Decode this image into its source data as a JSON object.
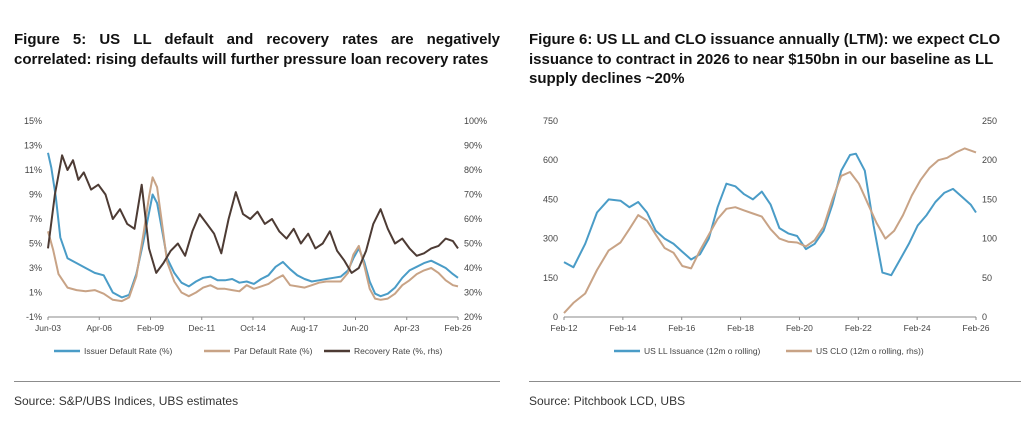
{
  "figures": [
    {
      "title": "Figure 5: US LL default and recovery rates are negatively correlated: rising defaults will further pressure loan recovery rates",
      "source": "Source: S&P/UBS Indices, UBS estimates"
    },
    {
      "title": "Figure 6: US LL and CLO issuance annually (LTM): we expect CLO issuance to contract in 2026 to near $150bn in our baseline as LL supply declines ~20%",
      "source": "Source: Pitchbook LCD, UBS"
    }
  ],
  "chart_data": [
    {
      "type": "line",
      "title": "",
      "xlabel": "",
      "ylabel": "",
      "x_ticks": [
        "Jun-03",
        "Apr-06",
        "Feb-09",
        "Dec-11",
        "Oct-14",
        "Aug-17",
        "Jun-20",
        "Apr-23",
        "Feb-26"
      ],
      "x_range": [
        2003.42,
        2026.08
      ],
      "y_ticks": [
        "-1%",
        "1%",
        "3%",
        "5%",
        "7%",
        "9%",
        "11%",
        "13%",
        "15%"
      ],
      "ylim": [
        -1,
        15
      ],
      "y2_ticks": [
        "20%",
        "30%",
        "40%",
        "50%",
        "60%",
        "70%",
        "80%",
        "90%",
        "100%"
      ],
      "y2lim": [
        20,
        100
      ],
      "grid": false,
      "legend_position": "bottom",
      "colors": {
        "issuer": "#4a9cc7",
        "par": "#c8a386",
        "recovery": "#4d3b34"
      },
      "series": [
        {
          "name": "Issuer Default Rate (%)",
          "axis": "left",
          "x": [
            2003.42,
            2003.6,
            2003.85,
            2004.1,
            2004.5,
            2005.0,
            2005.5,
            2006.0,
            2006.5,
            2007.0,
            2007.5,
            2007.9,
            2008.3,
            2008.7,
            2009.0,
            2009.2,
            2009.45,
            2009.7,
            2010.0,
            2010.4,
            2010.8,
            2011.2,
            2011.6,
            2012.0,
            2012.4,
            2012.8,
            2013.2,
            2013.6,
            2014.0,
            2014.4,
            2014.8,
            2015.2,
            2015.6,
            2016.0,
            2016.4,
            2016.8,
            2017.2,
            2017.6,
            2018.0,
            2018.4,
            2018.8,
            2019.2,
            2019.6,
            2020.0,
            2020.3,
            2020.6,
            2020.9,
            2021.2,
            2021.5,
            2021.8,
            2022.2,
            2022.6,
            2023.0,
            2023.4,
            2023.8,
            2024.2,
            2024.6,
            2025.0,
            2025.4,
            2025.8,
            2026.08
          ],
          "values": [
            12.4,
            11.2,
            8.8,
            5.5,
            3.8,
            3.4,
            3.0,
            2.6,
            2.4,
            1.0,
            0.6,
            0.8,
            2.5,
            5.2,
            7.5,
            9.0,
            8.3,
            6.3,
            3.8,
            2.6,
            1.8,
            1.5,
            1.9,
            2.2,
            2.3,
            2.0,
            2.0,
            2.1,
            1.8,
            1.9,
            1.7,
            2.1,
            2.4,
            3.1,
            3.5,
            2.9,
            2.4,
            2.1,
            1.9,
            2.0,
            2.1,
            2.2,
            2.3,
            2.8,
            3.8,
            4.6,
            3.5,
            1.9,
            0.9,
            0.7,
            0.9,
            1.4,
            2.2,
            2.8,
            3.1,
            3.4,
            3.6,
            3.3,
            3.0,
            2.5,
            2.2
          ]
        },
        {
          "name": "Par Default Rate (%)",
          "axis": "left",
          "x": [
            2003.42,
            2003.7,
            2004.0,
            2004.5,
            2005.0,
            2005.5,
            2006.0,
            2006.5,
            2007.0,
            2007.5,
            2007.9,
            2008.3,
            2008.7,
            2009.0,
            2009.2,
            2009.45,
            2009.7,
            2010.0,
            2010.4,
            2010.8,
            2011.2,
            2011.6,
            2012.0,
            2012.4,
            2012.8,
            2013.2,
            2013.6,
            2014.0,
            2014.4,
            2014.8,
            2015.2,
            2015.6,
            2016.0,
            2016.4,
            2016.8,
            2017.2,
            2017.6,
            2018.0,
            2018.4,
            2018.8,
            2019.2,
            2019.6,
            2020.0,
            2020.3,
            2020.6,
            2020.9,
            2021.2,
            2021.5,
            2021.8,
            2022.2,
            2022.6,
            2023.0,
            2023.4,
            2023.8,
            2024.2,
            2024.6,
            2025.0,
            2025.4,
            2025.8,
            2026.08
          ],
          "values": [
            6.0,
            4.5,
            2.5,
            1.4,
            1.2,
            1.1,
            1.2,
            0.9,
            0.4,
            0.3,
            0.6,
            2.3,
            5.8,
            8.8,
            10.4,
            9.6,
            6.9,
            3.5,
            1.9,
            1.0,
            0.7,
            1.0,
            1.4,
            1.6,
            1.3,
            1.3,
            1.2,
            1.1,
            1.6,
            1.3,
            1.5,
            1.7,
            2.1,
            2.4,
            1.6,
            1.5,
            1.4,
            1.6,
            1.8,
            1.9,
            1.9,
            1.9,
            2.6,
            4.1,
            4.8,
            3.2,
            1.3,
            0.5,
            0.4,
            0.5,
            0.9,
            1.6,
            2.0,
            2.5,
            2.8,
            3.0,
            2.6,
            2.0,
            1.6,
            1.5
          ]
        },
        {
          "name": "Recovery Rate (%, rhs)",
          "axis": "right",
          "x": [
            2003.42,
            2003.8,
            2004.2,
            2004.5,
            2004.8,
            2005.1,
            2005.4,
            2005.8,
            2006.2,
            2006.6,
            2007.0,
            2007.4,
            2007.8,
            2008.2,
            2008.6,
            2009.0,
            2009.4,
            2009.8,
            2010.2,
            2010.6,
            2011.0,
            2011.4,
            2011.8,
            2012.2,
            2012.6,
            2013.0,
            2013.4,
            2013.8,
            2014.2,
            2014.6,
            2015.0,
            2015.4,
            2015.8,
            2016.2,
            2016.6,
            2017.0,
            2017.4,
            2017.8,
            2018.2,
            2018.6,
            2019.0,
            2019.4,
            2019.8,
            2020.2,
            2020.6,
            2021.0,
            2021.4,
            2021.8,
            2022.2,
            2022.6,
            2023.0,
            2023.4,
            2023.8,
            2024.2,
            2024.6,
            2025.0,
            2025.4,
            2025.8,
            2026.08
          ],
          "values": [
            48,
            70,
            86,
            80,
            84,
            76,
            79,
            72,
            74,
            70,
            60,
            64,
            58,
            56,
            74,
            48,
            38,
            42,
            47,
            50,
            45,
            55,
            62,
            58,
            54,
            46,
            60,
            71,
            62,
            60,
            63,
            58,
            60,
            55,
            52,
            56,
            50,
            54,
            48,
            50,
            55,
            47,
            43,
            38,
            40,
            47,
            58,
            64,
            56,
            50,
            52,
            48,
            45,
            46,
            48,
            49,
            52,
            51,
            48
          ]
        }
      ]
    },
    {
      "type": "line",
      "title": "",
      "xlabel": "",
      "ylabel": "",
      "x_ticks": [
        "Feb-12",
        "Feb-14",
        "Feb-16",
        "Feb-18",
        "Feb-20",
        "Feb-22",
        "Feb-24",
        "Feb-26"
      ],
      "x_range": [
        2012.08,
        2026.08
      ],
      "y_ticks": [
        "0",
        "150",
        "300",
        "450",
        "600",
        "750"
      ],
      "ylim": [
        0,
        750
      ],
      "y2_ticks": [
        "0",
        "50",
        "100",
        "150",
        "200",
        "250"
      ],
      "y2lim": [
        0,
        250
      ],
      "grid": false,
      "legend_position": "bottom",
      "colors": {
        "ll": "#4a9cc7",
        "clo": "#c8a386"
      },
      "series": [
        {
          "name": "US LL Issuance (12m o rolling)",
          "axis": "left",
          "x": [
            2012.08,
            2012.4,
            2012.8,
            2013.2,
            2013.6,
            2014.0,
            2014.3,
            2014.6,
            2014.9,
            2015.2,
            2015.5,
            2015.8,
            2016.1,
            2016.4,
            2016.7,
            2017.0,
            2017.3,
            2017.6,
            2017.9,
            2018.2,
            2018.5,
            2018.8,
            2019.1,
            2019.4,
            2019.7,
            2020.0,
            2020.3,
            2020.6,
            2020.9,
            2021.2,
            2021.5,
            2021.8,
            2022.0,
            2022.3,
            2022.6,
            2022.9,
            2023.2,
            2023.5,
            2023.8,
            2024.1,
            2024.4,
            2024.7,
            2025.0,
            2025.3,
            2025.6,
            2025.9,
            2026.08
          ],
          "values": [
            210,
            190,
            280,
            400,
            450,
            445,
            420,
            440,
            400,
            330,
            300,
            280,
            250,
            220,
            240,
            300,
            420,
            510,
            500,
            470,
            450,
            480,
            430,
            340,
            320,
            310,
            260,
            280,
            330,
            430,
            560,
            620,
            625,
            560,
            350,
            170,
            160,
            220,
            280,
            350,
            390,
            440,
            475,
            490,
            460,
            430,
            400
          ]
        },
        {
          "name": "US CLO (12m o rolling, rhs))",
          "axis": "right",
          "x": [
            2012.08,
            2012.4,
            2012.8,
            2013.2,
            2013.6,
            2014.0,
            2014.3,
            2014.6,
            2014.9,
            2015.2,
            2015.5,
            2015.8,
            2016.1,
            2016.4,
            2016.7,
            2017.0,
            2017.3,
            2017.6,
            2017.9,
            2018.2,
            2018.5,
            2018.8,
            2019.1,
            2019.4,
            2019.7,
            2020.0,
            2020.3,
            2020.6,
            2020.9,
            2021.2,
            2021.5,
            2021.8,
            2022.1,
            2022.4,
            2022.7,
            2023.0,
            2023.3,
            2023.6,
            2023.9,
            2024.2,
            2024.5,
            2024.8,
            2025.1,
            2025.4,
            2025.7,
            2026.08
          ],
          "values": [
            5,
            18,
            30,
            60,
            85,
            95,
            112,
            130,
            123,
            105,
            88,
            82,
            65,
            62,
            85,
            105,
            125,
            138,
            140,
            136,
            132,
            128,
            112,
            100,
            96,
            95,
            90,
            98,
            115,
            150,
            180,
            185,
            170,
            145,
            120,
            100,
            110,
            130,
            155,
            175,
            190,
            200,
            203,
            210,
            215,
            210
          ]
        }
      ]
    }
  ]
}
